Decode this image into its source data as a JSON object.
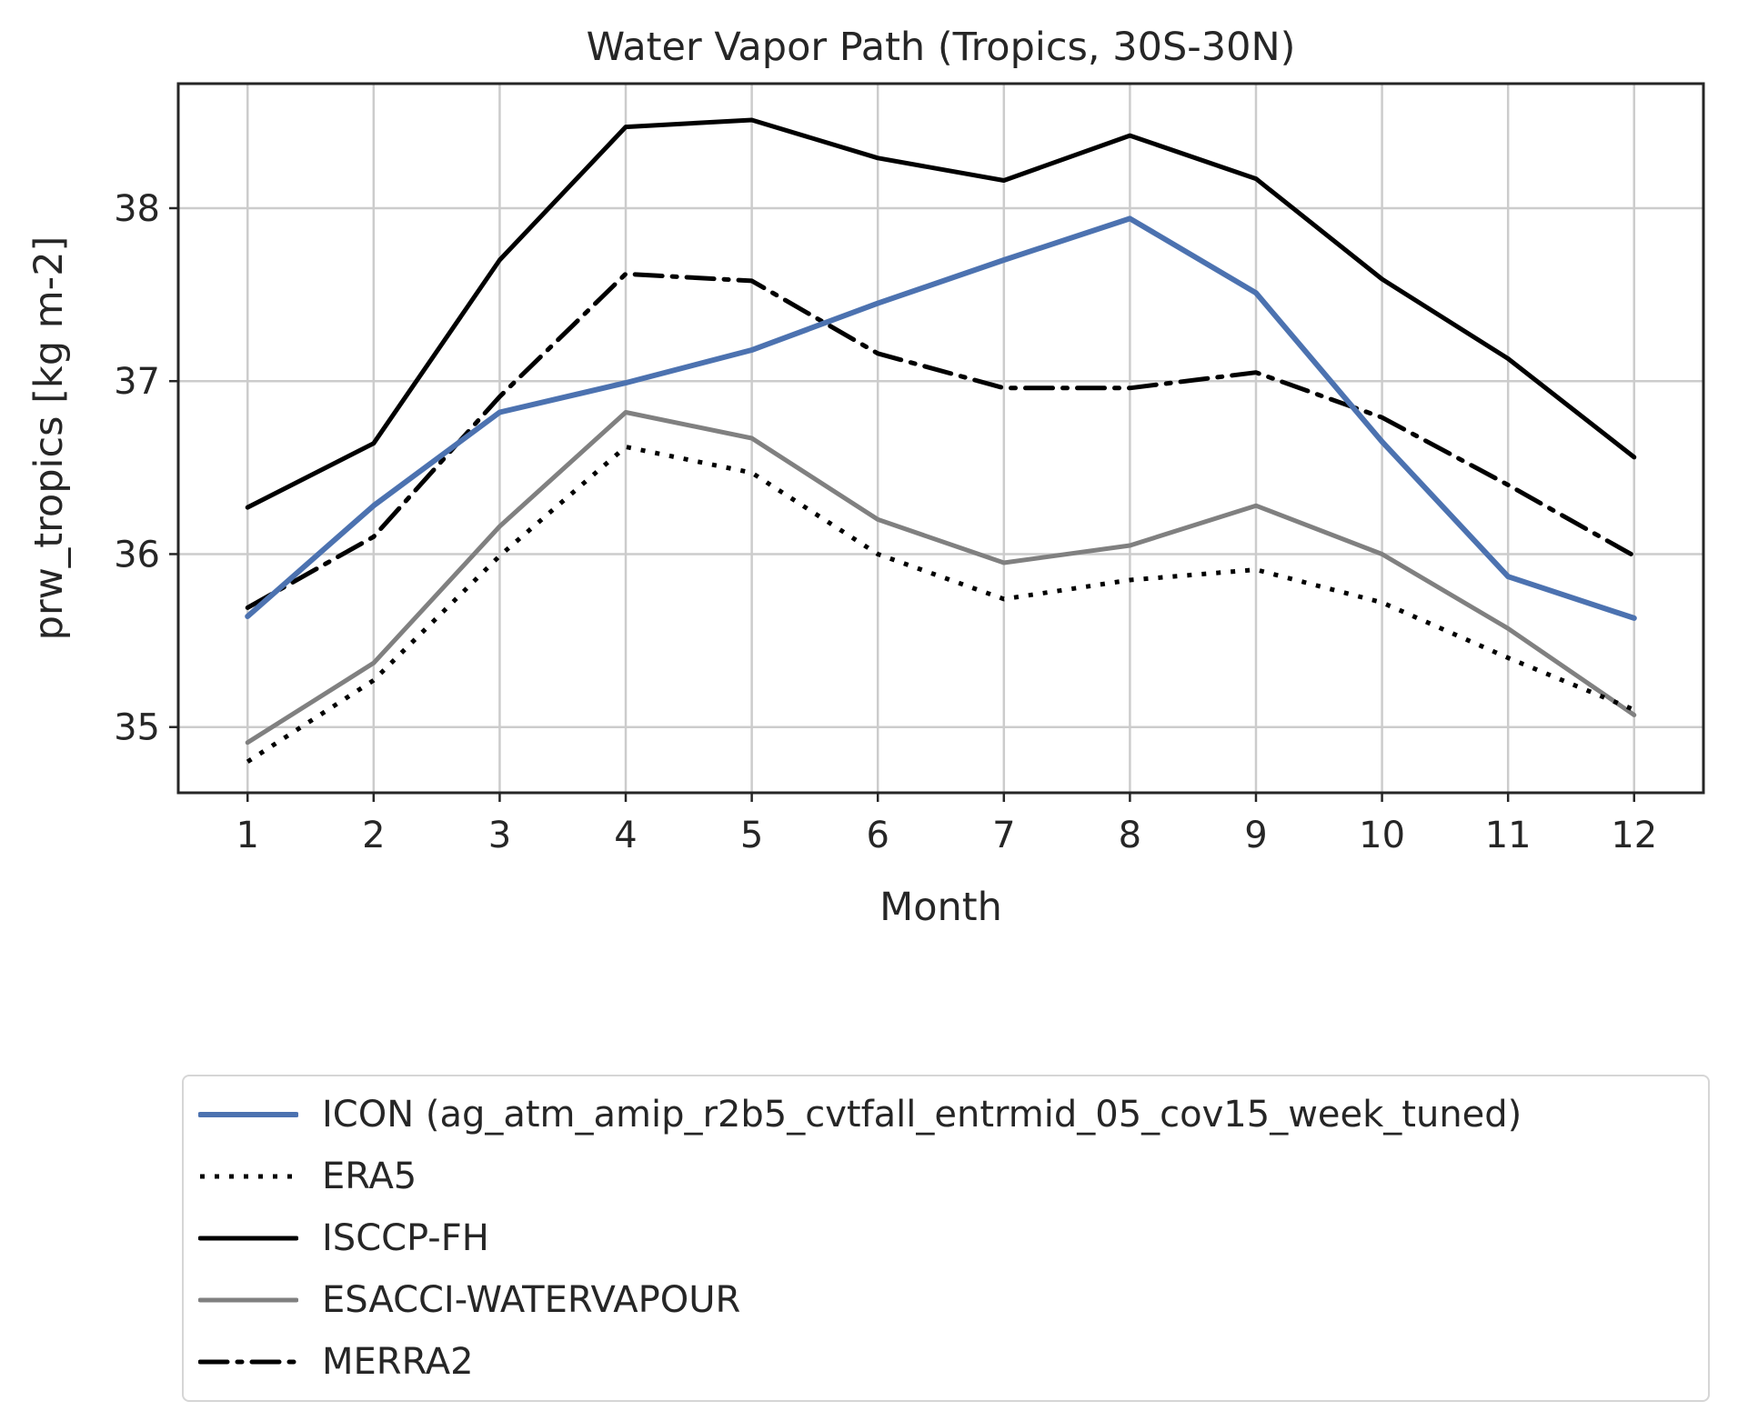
{
  "chart_data": {
    "type": "line",
    "title": "Water Vapor Path (Tropics, 30S-30N)",
    "xlabel": "Month",
    "ylabel": "prw_tropics [kg m-2]",
    "x": [
      1,
      2,
      3,
      4,
      5,
      6,
      7,
      8,
      9,
      10,
      11,
      12
    ],
    "xticks": [
      "1",
      "2",
      "3",
      "4",
      "5",
      "6",
      "7",
      "8",
      "9",
      "10",
      "11",
      "12"
    ],
    "yticks": [
      "35",
      "36",
      "37",
      "38"
    ],
    "xlim": [
      0.45,
      12.55
    ],
    "ylim": [
      34.62,
      38.72
    ],
    "grid": true,
    "legend_position": "below",
    "series": [
      {
        "name": "ICON (ag_atm_amip_r2b5_cvtfall_entrmid_05_cov15_week_tuned)",
        "color": "#4c72b0",
        "style": "solid",
        "width": 6,
        "values": [
          35.64,
          36.28,
          36.82,
          36.99,
          37.18,
          37.45,
          37.7,
          37.94,
          37.51,
          36.65,
          35.87,
          35.63
        ]
      },
      {
        "name": "ERA5",
        "color": "#000000",
        "style": "dotted",
        "width": 5,
        "values": [
          34.8,
          35.27,
          35.99,
          36.62,
          36.47,
          36.0,
          35.74,
          35.85,
          35.91,
          35.72,
          35.4,
          35.1
        ]
      },
      {
        "name": "ISCCP-FH",
        "color": "#000000",
        "style": "solid",
        "width": 5,
        "values": [
          36.27,
          36.64,
          37.7,
          38.47,
          38.51,
          38.29,
          38.16,
          38.42,
          38.17,
          37.59,
          37.13,
          36.56
        ]
      },
      {
        "name": "ESACCI-WATERVAPOUR",
        "color": "#808080",
        "style": "solid",
        "width": 5,
        "values": [
          34.91,
          35.37,
          36.16,
          36.82,
          36.67,
          36.2,
          35.95,
          36.05,
          36.28,
          36.0,
          35.57,
          35.07
        ]
      },
      {
        "name": "MERRA2",
        "color": "#000000",
        "style": "dashdot",
        "width": 5,
        "values": [
          35.69,
          36.1,
          36.91,
          37.62,
          37.58,
          37.16,
          36.96,
          36.96,
          37.05,
          36.79,
          36.4,
          35.99
        ]
      }
    ]
  }
}
